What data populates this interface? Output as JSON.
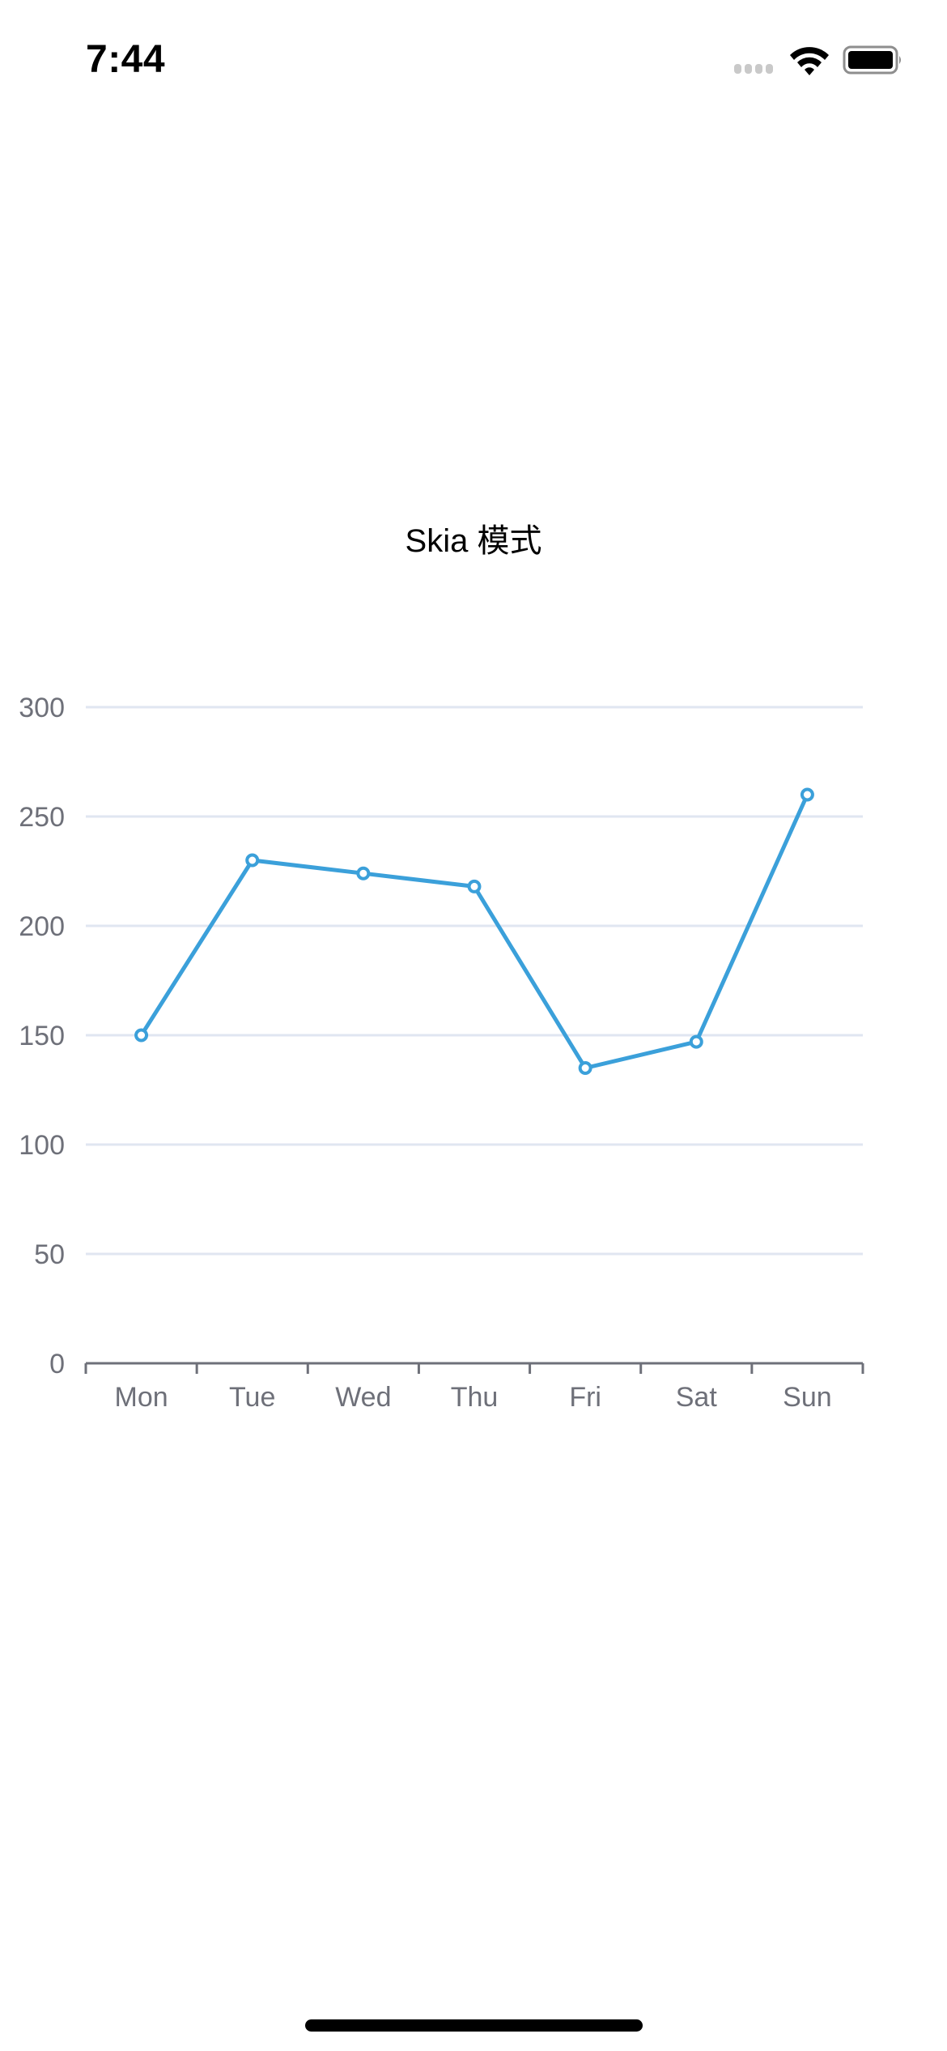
{
  "status_bar": {
    "time": "7:44",
    "icons": [
      "cellular-signal-icon",
      "wifi-icon",
      "battery-icon"
    ]
  },
  "title": "Skia 模式",
  "colors": {
    "series_line": "#3BA0DA",
    "grid_line": "#E0E6F1",
    "axis_line": "#6E7079",
    "axis_label": "#6E7079"
  },
  "chart_data": {
    "type": "line",
    "title": "Skia 模式",
    "categories": [
      "Mon",
      "Tue",
      "Wed",
      "Thu",
      "Fri",
      "Sat",
      "Sun"
    ],
    "values": [
      150,
      230,
      224,
      218,
      135,
      147,
      260
    ],
    "xlabel": "",
    "ylabel": "",
    "ylim": [
      0,
      300
    ],
    "yticks": [
      0,
      50,
      100,
      150,
      200,
      250,
      300
    ],
    "grid": true,
    "legend": null
  }
}
